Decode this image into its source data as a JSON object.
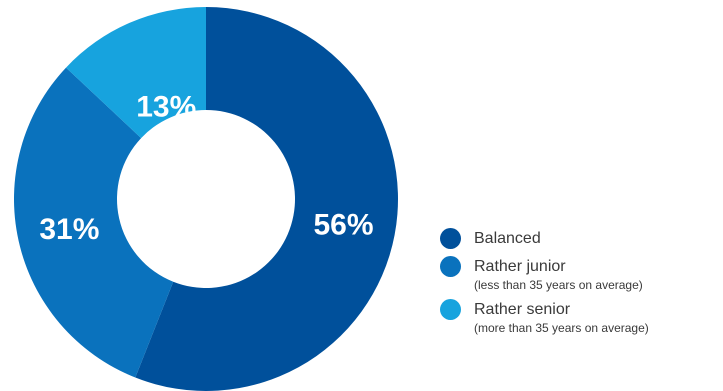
{
  "chart_data": {
    "type": "pie",
    "title": "",
    "categories": [
      "Balanced",
      "Rather junior",
      "Rather senior"
    ],
    "values": [
      56,
      31,
      13
    ],
    "value_labels": [
      "56%",
      "31%",
      "13%"
    ],
    "category_notes": [
      "",
      "(less than 35 years on average)",
      "(more than 35 years on average)"
    ],
    "colors": [
      "#00509b",
      "#0a72bd",
      "#17a3de"
    ],
    "donut": true,
    "start_direction": "top",
    "slice_order": "clockwise",
    "legend_position": "right-bottom"
  }
}
